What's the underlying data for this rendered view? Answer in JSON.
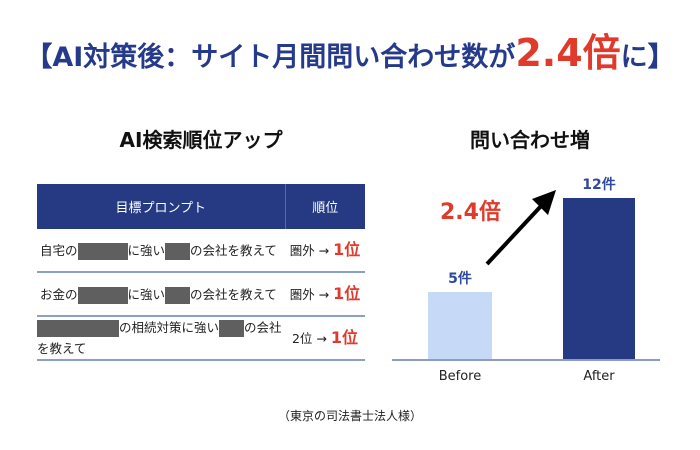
{
  "title": {
    "prefix": "【AI対策後：サイト月間問い合わせ数が",
    "highlight": "2.4倍",
    "suffix": "に】"
  },
  "left_heading": "AI検索順位アップ",
  "right_heading": "問い合わせ増",
  "table": {
    "headers": [
      "目標プロンプト",
      "順位"
    ],
    "rows": [
      {
        "parts": [
          "自宅の",
          "に強い",
          "の会社を教えて"
        ],
        "before": "圏外 →",
        "after": "1位"
      },
      {
        "parts": [
          "お金の",
          "に強い",
          "の会社を教えて"
        ],
        "before": "圏外 →",
        "after": "1位"
      },
      {
        "parts": [
          "",
          "の相続対策に強い",
          "の会社を教えて"
        ],
        "before": "2位 →",
        "after": "1位"
      }
    ]
  },
  "chart_data": {
    "type": "bar",
    "categories": [
      "Before",
      "After"
    ],
    "values": [
      5,
      12
    ],
    "data_labels": [
      "5件",
      "12件"
    ],
    "annotation": "2.4倍",
    "colors": [
      "#c6daf7",
      "#253a83"
    ]
  },
  "footer": "（東京の司法書士法人様）"
}
